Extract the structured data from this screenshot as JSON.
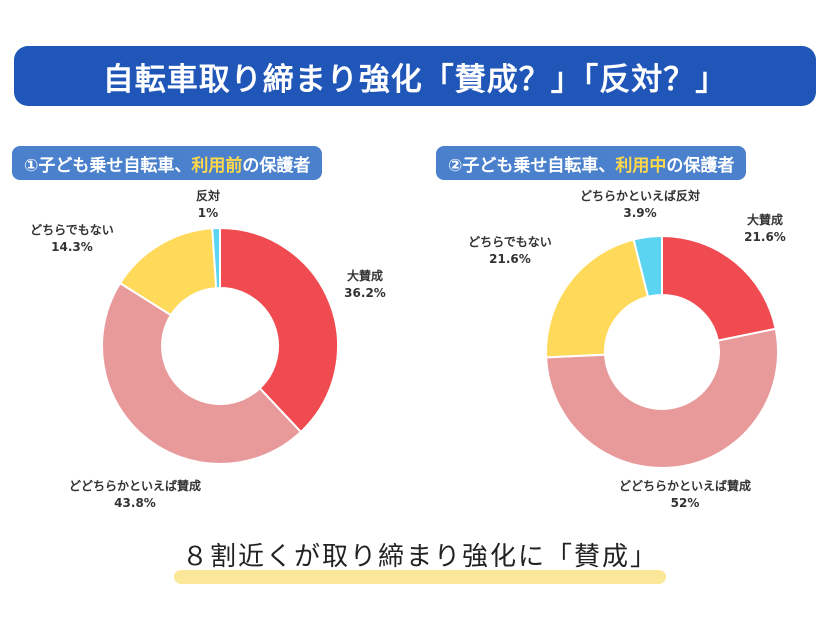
{
  "title": "自転車取り締まり強化「賛成？」「反対？」",
  "panels": {
    "left": {
      "label_pre": "①子ども乗せ自転車、",
      "label_highlight": "利用前",
      "label_post": "の保護者"
    },
    "right": {
      "label_pre": "②子ども乗せ自転車、",
      "label_highlight": "利用中",
      "label_post": "の保護者"
    }
  },
  "conclusion": "８割近くが取り締まり強化に「賛成」",
  "colors": {
    "banner": "#1f56b8",
    "panel_label": "#4a80cc",
    "highlight": "#ffd84a",
    "underline": "#fbe79a"
  },
  "chart_data": [
    {
      "type": "pie",
      "donut": true,
      "categories": [
        "大賛成",
        "どどちらかといえば賛成",
        "どちらでもない",
        "反対"
      ],
      "labels": [
        "大賛成",
        "どどちらかといえば賛成",
        "どちらでもない",
        "反対"
      ],
      "values": [
        36.2,
        43.8,
        14.3,
        1.0
      ],
      "value_labels": [
        "36.2%",
        "43.8%",
        "14.3%",
        "1%"
      ],
      "colors": [
        "#f04b50",
        "#e89a9b",
        "#ffd95a",
        "#5bd4f2"
      ]
    },
    {
      "type": "pie",
      "donut": true,
      "categories": [
        "大賛成",
        "どどちらかといえば賛成",
        "どちらでもない",
        "どちらかといえば反対"
      ],
      "labels": [
        "大賛成",
        "どどちらかといえば賛成",
        "どちらでもない",
        "どちらかといえば反対"
      ],
      "values": [
        21.6,
        52.0,
        21.6,
        3.9
      ],
      "value_labels": [
        "21.6%",
        "52%",
        "21.6%",
        "3.9%"
      ],
      "colors": [
        "#f04b50",
        "#e89a9b",
        "#ffd95a",
        "#5bd4f2"
      ]
    }
  ]
}
